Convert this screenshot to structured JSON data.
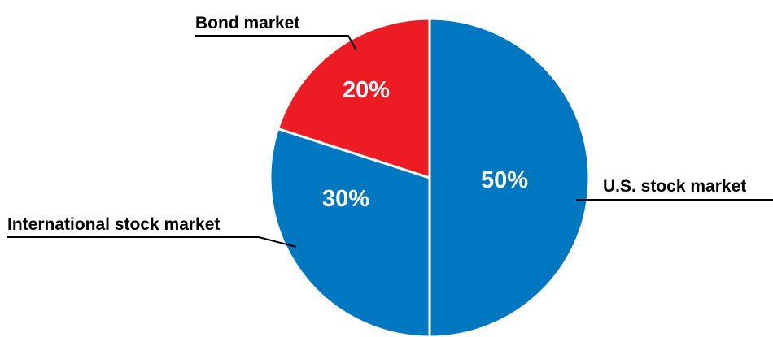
{
  "chart_data": {
    "type": "pie",
    "title": "",
    "slices": [
      {
        "label": "U.S. stock market",
        "value": 50,
        "value_label": "50%",
        "color": "#0078c1"
      },
      {
        "label": "International stock market",
        "value": 30,
        "value_label": "30%",
        "color": "#0078c1"
      },
      {
        "label": "Bond market",
        "value": 20,
        "value_label": "20%",
        "color": "#ed1c24"
      }
    ],
    "start_angle": "12 o'clock",
    "direction": "clockwise",
    "legend": "none (callout labels)"
  }
}
